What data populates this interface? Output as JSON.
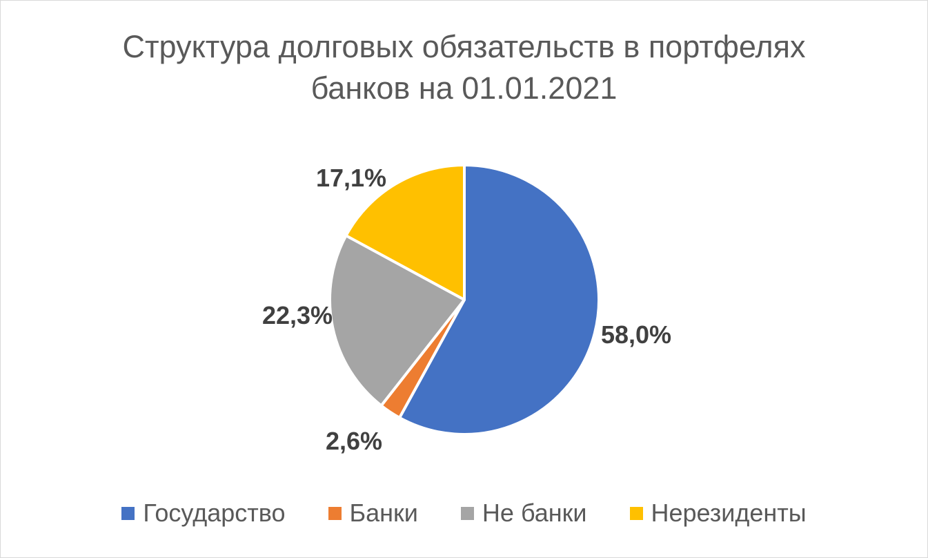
{
  "chart_data": {
    "type": "pie",
    "title_lines": [
      "Структура долговых обязательств в портфелях",
      "банков на 01.01.2021"
    ],
    "categories": [
      "Государство",
      "Банки",
      "Не банки",
      "Нерезиденты"
    ],
    "values": [
      58.0,
      2.6,
      22.3,
      17.1
    ],
    "data_labels": [
      "58,0%",
      "2,6%",
      "22,3%",
      "17,1%"
    ],
    "colors": [
      "#4472C4",
      "#ED7D31",
      "#A5A5A5",
      "#FFC000"
    ],
    "legend_position": "bottom",
    "start_angle_deg": 0,
    "direction": "clockwise"
  }
}
